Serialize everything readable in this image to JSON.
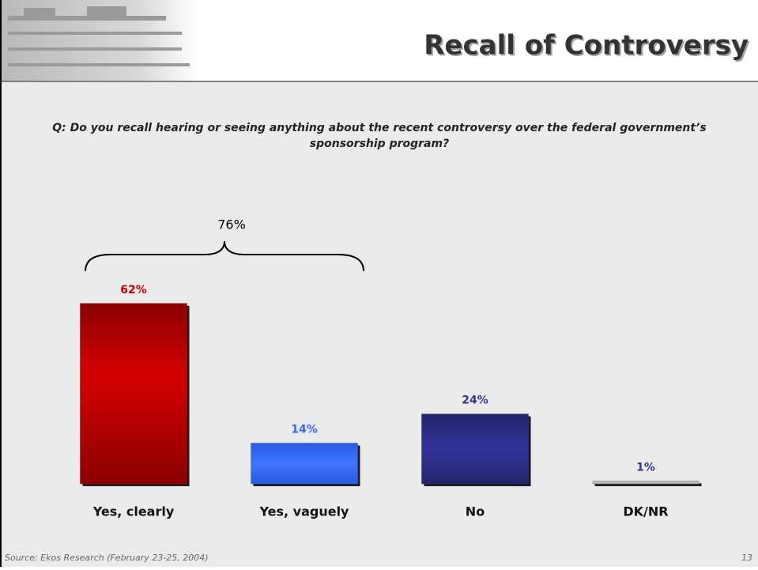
{
  "chart_data": {
    "type": "bar",
    "title": "Recall of Controversy",
    "subtitle": "Q: Do you recall hearing or seeing anything about the recent controversy over the federal government’s sponsorship program?",
    "annotation": "76%",
    "categories": [
      "Yes, clearly",
      "Yes, vaguely",
      "No",
      "DK/NR"
    ],
    "values": [
      62,
      14,
      24,
      1
    ],
    "value_labels": [
      "62%",
      "14%",
      "24%",
      "1%"
    ],
    "colors": [
      "#c00000",
      "#3366ff",
      "#2e2e8c",
      "#a6a6a6"
    ],
    "label_colors": [
      "#c00000",
      "#3366ff",
      "#333399",
      "#333399"
    ],
    "source": "Source: Ekos Research (February 23-25, 2004)",
    "page_number": "13"
  }
}
